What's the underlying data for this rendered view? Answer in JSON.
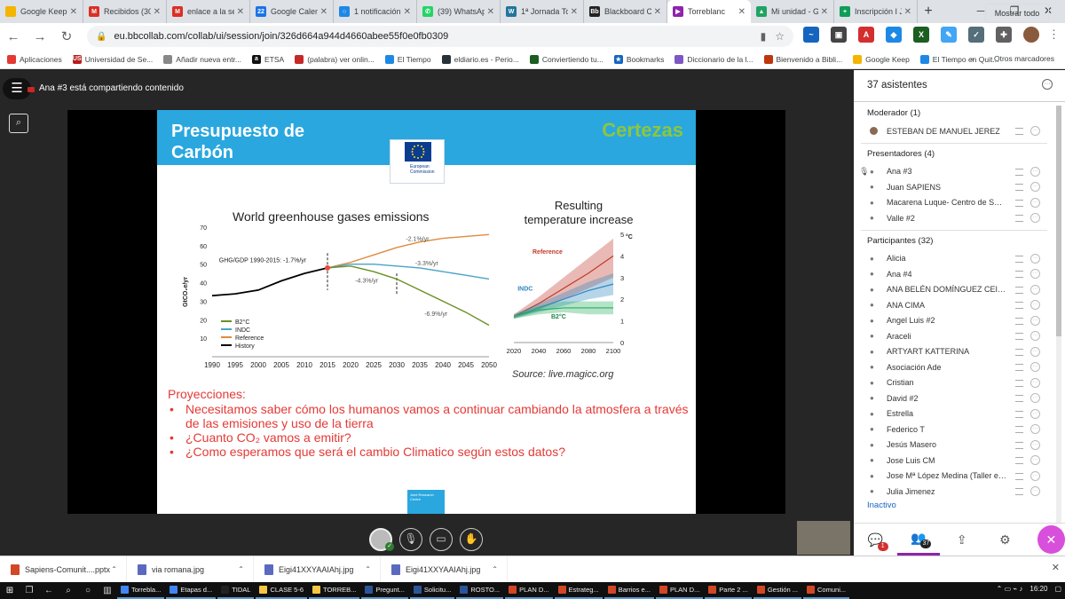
{
  "tabs": [
    {
      "label": "Google Keep",
      "color": "#f4b400",
      "glyph": ""
    },
    {
      "label": "Recibidos (307",
      "color": "#d93025",
      "glyph": "M"
    },
    {
      "label": "enlace a la ses",
      "color": "#d93025",
      "glyph": "M"
    },
    {
      "label": "Google Calend",
      "color": "#1a73e8",
      "glyph": "22"
    },
    {
      "label": "1 notificación",
      "color": "#1e88e5",
      "glyph": "○"
    },
    {
      "label": "(39) WhatsApp",
      "color": "#25d366",
      "glyph": "✆"
    },
    {
      "label": "1ª Jornada Tor",
      "color": "#21759b",
      "glyph": "W"
    },
    {
      "label": "Blackboard Co",
      "color": "#222222",
      "glyph": "Bb"
    },
    {
      "label": "Torreblanc",
      "color": "#8e24aa",
      "glyph": "▶",
      "active": true
    },
    {
      "label": "Mi unidad - Go",
      "color": "#1fa463",
      "glyph": "▲"
    },
    {
      "label": "Inscripción I Je",
      "color": "#0f9d58",
      "glyph": "+"
    }
  ],
  "address": {
    "url": "eu.bbcollab.com/collab/ui/session/join/326d664a944d4660abee55f0e0fb0309"
  },
  "bookmarks": [
    {
      "label": "Aplicaciones",
      "color": "#e53935"
    },
    {
      "label": "Universidad de Se...",
      "color": "#b71c1c",
      "glyph": "US"
    },
    {
      "label": "Añadir nueva entr...",
      "color": "#888888"
    },
    {
      "label": "ETSA",
      "color": "#111111",
      "glyph": "a"
    },
    {
      "label": "(palabra) ver onlin...",
      "color": "#c62828"
    },
    {
      "label": "El Tiempo",
      "color": "#1e88e5"
    },
    {
      "label": "eldiario.es - Perio...",
      "color": "#263238"
    },
    {
      "label": "Conviertiendo tu...",
      "color": "#1b5e20"
    },
    {
      "label": "Bookmarks",
      "color": "#1565c0",
      "glyph": "★"
    },
    {
      "label": "Diccionario de la l...",
      "color": "#7e57c2"
    },
    {
      "label": "Bienvenido a Bibli...",
      "color": "#bf360c"
    },
    {
      "label": "Google Keep",
      "color": "#f4b400"
    },
    {
      "label": "El Tiempo en Quit...",
      "color": "#1e88e5"
    }
  ],
  "bookmarks_more": "»",
  "bookmarks_other": "Otros marcadores",
  "collab": {
    "sharing_label": "Ana #3 está compartiendo contenido"
  },
  "slide": {
    "title_line1": "Presupuesto de",
    "title_line2": "Carbón",
    "badge": "Certezas",
    "logo_line1": "European",
    "logo_line2": "Commission",
    "emissions_title": "World greenhouse gases emissions",
    "temp_title_line1": "Resulting",
    "temp_title_line2": "temperature increase",
    "source": "Source: live.magicc.org",
    "projections_head": "Proyecciones:",
    "bullet1": "Necesitamos saber cómo los humanos vamos a continuar cambiando la atmosfera a través de las emisiones y uso de la tierra",
    "bullet2": "¿Cuanto CO₂ vamos a emitir?",
    "bullet3": "¿Como esperamos que será el cambio Climatico según estos datos?",
    "jrc_text": "Joint Research Centre"
  },
  "chart_data": [
    {
      "type": "line",
      "title": "World greenhouse gases emissions",
      "xlabel": "",
      "ylabel": "GtCO₂e/yr",
      "xlim": [
        1990,
        2050
      ],
      "ylim": [
        0,
        70
      ],
      "x_ticks": [
        1990,
        1995,
        2000,
        2005,
        2010,
        2015,
        2020,
        2025,
        2030,
        2035,
        2040,
        2045,
        2050
      ],
      "y_ticks": [
        10,
        20,
        30,
        40,
        50,
        60,
        70
      ],
      "legend": [
        "B2°C",
        "INDC",
        "Reference",
        "History"
      ],
      "legend_position": "bottom-left",
      "annotations": [
        "GHG/GDP 1990-2015: -1.7%/yr",
        "-2.1%/yr",
        "-3.3%/yr",
        "-4.3%/yr",
        "-6.9%/yr"
      ],
      "series": [
        {
          "name": "History",
          "color": "#000000",
          "x": [
            1990,
            1995,
            2000,
            2005,
            2010,
            2015
          ],
          "values": [
            33,
            34,
            36,
            41,
            45,
            48
          ]
        },
        {
          "name": "Reference",
          "color": "#e08a3c",
          "x": [
            2015,
            2020,
            2025,
            2030,
            2035,
            2040,
            2045,
            2050
          ],
          "values": [
            48,
            51,
            55,
            59,
            62,
            64,
            65,
            66
          ]
        },
        {
          "name": "INDC",
          "color": "#4aa3c8",
          "x": [
            2015,
            2020,
            2025,
            2030,
            2035,
            2040,
            2045,
            2050
          ],
          "values": [
            48,
            50,
            50,
            49,
            48,
            46,
            44,
            42
          ]
        },
        {
          "name": "B2°C",
          "color": "#6b8e23",
          "x": [
            2015,
            2020,
            2025,
            2030,
            2035,
            2040,
            2045,
            2050
          ],
          "values": [
            48,
            49,
            46,
            42,
            36,
            30,
            24,
            17
          ]
        }
      ]
    },
    {
      "type": "area",
      "title": "Resulting temperature increase",
      "ylabel": "°C",
      "xlim": [
        2020,
        2100
      ],
      "ylim": [
        0,
        5
      ],
      "x_ticks": [
        2020,
        2040,
        2060,
        2080,
        2100
      ],
      "y_ticks": [
        0,
        1,
        2,
        3,
        4,
        5
      ],
      "y_unit": "°C",
      "series": [
        {
          "name": "Reference",
          "color": "#c0392b",
          "x": [
            2020,
            2040,
            2060,
            2080,
            2100
          ],
          "values": [
            1.2,
            1.8,
            2.5,
            3.2,
            4.0
          ],
          "low": [
            1.1,
            1.5,
            2.0,
            2.5,
            3.0
          ],
          "high": [
            1.3,
            2.1,
            3.0,
            3.9,
            4.8
          ]
        },
        {
          "name": "INDC",
          "color": "#2e86c1",
          "x": [
            2020,
            2040,
            2060,
            2080,
            2100
          ],
          "values": [
            1.2,
            1.6,
            2.0,
            2.4,
            2.7
          ],
          "low": [
            1.1,
            1.4,
            1.7,
            2.0,
            2.2
          ],
          "high": [
            1.3,
            1.8,
            2.3,
            2.8,
            3.2
          ]
        },
        {
          "name": "B2°C",
          "color": "#27ae60",
          "x": [
            2020,
            2040,
            2060,
            2080,
            2100
          ],
          "values": [
            1.2,
            1.5,
            1.6,
            1.6,
            1.6
          ],
          "low": [
            1.1,
            1.3,
            1.4,
            1.3,
            1.3
          ],
          "high": [
            1.3,
            1.7,
            1.9,
            1.9,
            1.9
          ]
        }
      ]
    }
  ],
  "panel": {
    "title": "37 asistentes",
    "moderators_label": "Moderador (1)",
    "moderators": [
      "ESTEBAN DE MANUEL JEREZ"
    ],
    "presenters_label": "Presentadores (4)",
    "presenters": [
      "Ana #3",
      "Juan SAPIENS",
      "Macarena Luque- Centro de Ser...",
      "Valle #2"
    ],
    "participants_label": "Participantes (32)",
    "participants": [
      "Alicia",
      "Ana #4",
      "ANA BELÉN DOMÍNGUEZ CEIP V...",
      "ANA CIMA",
      "Angel Luis #2",
      "Araceli",
      "ARTYART KATTERINA",
      "Asociación Ade",
      "Cristian",
      "David #2",
      "Estrella",
      "Federico T",
      "Jesús Masero",
      "Jose Luis CM",
      "Jose Mª López Medina (Taller ec...",
      "Julia Jimenez"
    ],
    "inactive_label": "Inactivo",
    "chat_badge": "1",
    "attendees_badge": "37"
  },
  "downloads": [
    {
      "name": "Sapiens-Comunit....pptx",
      "color": "#d24726"
    },
    {
      "name": "via romana.jpg",
      "color": "#5b6abf"
    },
    {
      "name": "Eigi41XXYAAIAhj.jpg",
      "color": "#5b6abf"
    },
    {
      "name": "Eigi41XXYAAIAhj.jpg",
      "color": "#5b6abf"
    }
  ],
  "downloads_show_all": "Mostrar todo",
  "taskbar": {
    "apps": [
      {
        "label": "Torrebla...",
        "color": "#4285f4"
      },
      {
        "label": "Etapas d...",
        "color": "#4285f4"
      },
      {
        "label": "TIDAL",
        "color": "#222222"
      },
      {
        "label": "CLASE 5-6",
        "color": "#f6c744"
      },
      {
        "label": "TORREB...",
        "color": "#f6c744"
      },
      {
        "label": "Pregunt...",
        "color": "#2b579a"
      },
      {
        "label": "Solicitu...",
        "color": "#2b579a"
      },
      {
        "label": "ROSTO...",
        "color": "#2b579a"
      },
      {
        "label": "PLAN D...",
        "color": "#d24726"
      },
      {
        "label": "Estrateg...",
        "color": "#d24726"
      },
      {
        "label": "Barrios e...",
        "color": "#d24726"
      },
      {
        "label": "PLAN D...",
        "color": "#d24726"
      },
      {
        "label": "Parte 2 ...",
        "color": "#d24726"
      },
      {
        "label": "Gestión ...",
        "color": "#d24726"
      },
      {
        "label": "Comuni...",
        "color": "#d24726"
      }
    ],
    "clock": "16:20"
  }
}
